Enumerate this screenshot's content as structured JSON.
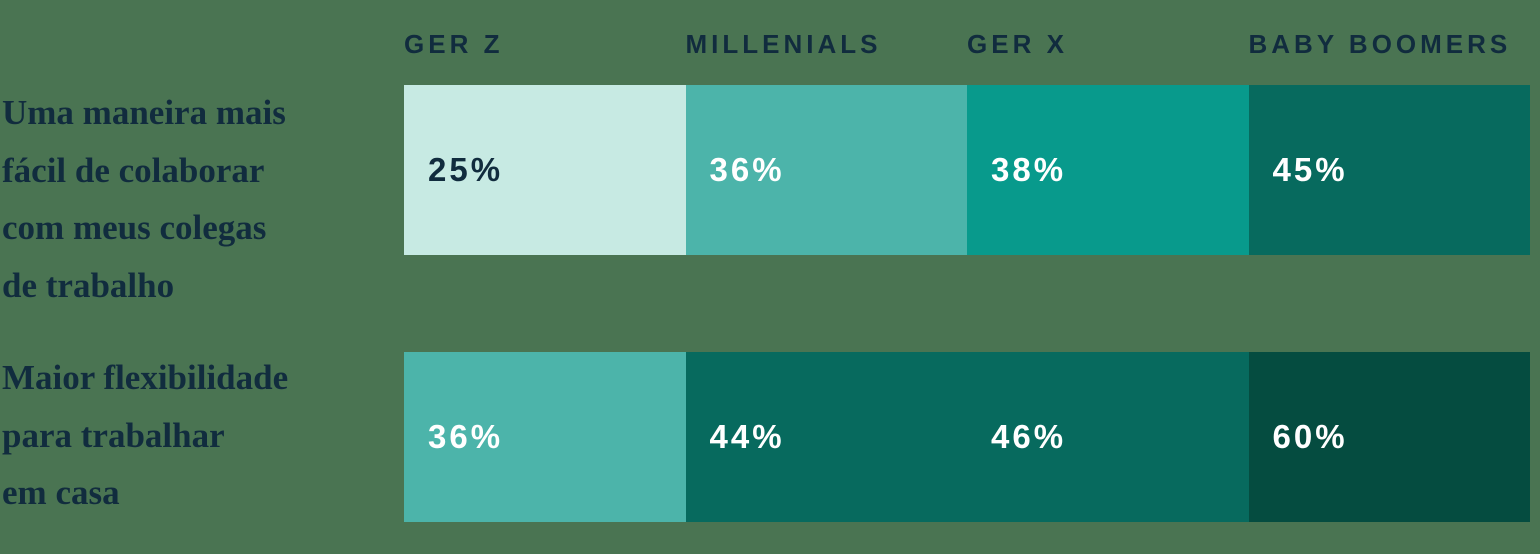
{
  "colors": {
    "background": "#4a7452",
    "text_dark": "#112c3e",
    "value_light": "#ffffff"
  },
  "chart_data": {
    "type": "bar",
    "title": "",
    "legend": false,
    "grid": false,
    "bar_style": "equal-width horizontal segments, one column per generation",
    "unit": "%",
    "categories": [
      "GER Z",
      "MILLENIALS",
      "GER X",
      "BABY BOOMERS"
    ],
    "rows": [
      {
        "label": "Uma maneira mais fácil de colaborar com meus colegas de trabalho",
        "label_lines": [
          "Uma maneira mais",
          "fácil de colaborar",
          "com meus colegas",
          "de trabalho"
        ],
        "values": [
          25,
          36,
          38,
          45
        ],
        "value_labels": [
          "25%",
          "36%",
          "38%",
          "45%"
        ],
        "segment_colors": [
          "#c7eae3",
          "#4cb4aa",
          "#089a8c",
          "#076a5e"
        ],
        "value_text_colors": [
          "#112c3e",
          "#ffffff",
          "#ffffff",
          "#ffffff"
        ]
      },
      {
        "label": "Maior flexibilidade para trabalhar em casa",
        "label_lines": [
          "Maior flexibilidade",
          "para trabalhar",
          "em casa"
        ],
        "values": [
          36,
          44,
          46,
          60
        ],
        "value_labels": [
          "36%",
          "44%",
          "46%",
          "60%"
        ],
        "segment_colors": [
          "#4cb4aa",
          "#076a5e",
          "#076a5e",
          "#054c40"
        ],
        "value_text_colors": [
          "#ffffff",
          "#ffffff",
          "#ffffff",
          "#ffffff"
        ]
      }
    ]
  }
}
